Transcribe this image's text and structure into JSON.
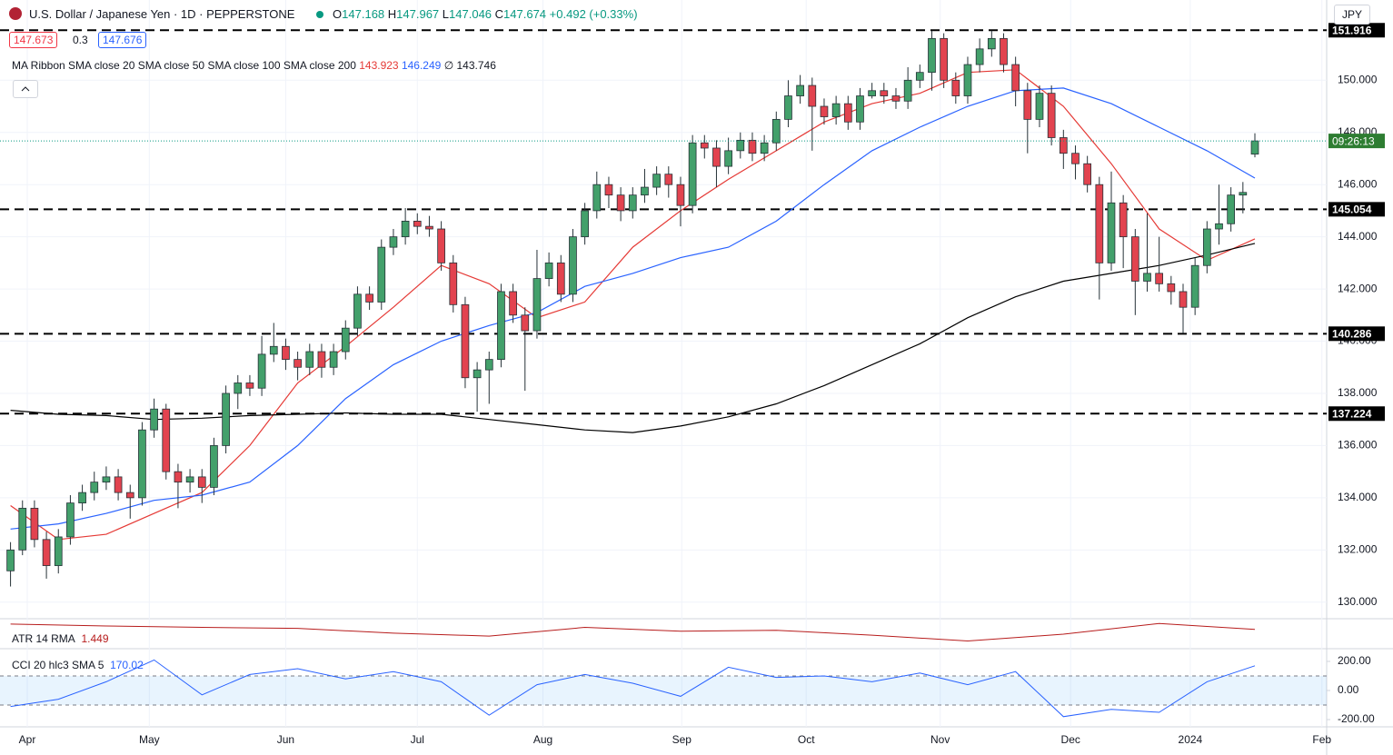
{
  "chart_data": {
    "type": "candlestick",
    "title": "U.S. Dollar / Japanese Yen · 1D · PEPPERSTONE",
    "ohlc_prefixes": [
      "O",
      "H",
      "L",
      "C"
    ],
    "change": "+0.492 (+0.33%)",
    "bid": 147.673,
    "spread": 0.3,
    "ask": 147.676,
    "ma_label": "MA Ribbon SMA close 20 SMA close 50 SMA close 100 SMA close 200",
    "ma_missing": "∅",
    "currency": "JPY",
    "countdown": "09:26:13",
    "up_color": "#43a06b",
    "down_color": "#e2434f",
    "outline_color": "#263238",
    "open": [
      131.2,
      132.0,
      133.6,
      132.4,
      131.4,
      132.5,
      133.8,
      134.2,
      134.6,
      134.8,
      134.2,
      134.0,
      136.6,
      137.4,
      135.0,
      134.6,
      134.8,
      134.4,
      136.0,
      138.0,
      138.4,
      138.2,
      139.5,
      139.8,
      139.3,
      139.0,
      139.6,
      139.0,
      139.6,
      140.5,
      141.8,
      141.5,
      143.6,
      144.0,
      144.6,
      144.4,
      144.3,
      143.0,
      141.4,
      138.6,
      138.9,
      139.3,
      141.9,
      141.0,
      140.4,
      142.4,
      143.0,
      141.8,
      144.0,
      145.0,
      146.0,
      145.6,
      145.0,
      145.6,
      145.9,
      146.4,
      146.0,
      145.2,
      147.6,
      147.4,
      146.7,
      147.3,
      147.7,
      147.2,
      147.6,
      148.5,
      149.4,
      149.8,
      149.0,
      148.6,
      149.1,
      148.4,
      149.4,
      149.6,
      149.4,
      149.2,
      150.0,
      150.3,
      151.6,
      150.0,
      149.4,
      150.6,
      151.2,
      151.6,
      150.6,
      149.6,
      148.5,
      149.5,
      147.8,
      147.2,
      146.8,
      146.0,
      143.0,
      145.3,
      144.0,
      142.3,
      142.6,
      142.2,
      141.9,
      141.3,
      142.9,
      144.3,
      144.5,
      145.6,
      147.168
    ],
    "high": [
      132.3,
      133.9,
      133.9,
      132.7,
      132.8,
      134.1,
      134.5,
      135.0,
      135.2,
      135.1,
      134.5,
      136.9,
      137.8,
      137.6,
      135.3,
      135.1,
      135.1,
      136.3,
      138.3,
      138.7,
      138.7,
      140.2,
      140.7,
      140.1,
      139.6,
      139.9,
      139.9,
      139.9,
      140.8,
      142.1,
      142.1,
      143.9,
      144.3,
      145.1,
      144.9,
      144.8,
      144.6,
      143.3,
      141.7,
      139.2,
      139.6,
      142.2,
      142.2,
      141.3,
      143.5,
      143.4,
      143.3,
      144.3,
      145.3,
      146.5,
      146.3,
      145.9,
      145.9,
      146.6,
      146.7,
      146.7,
      146.3,
      147.9,
      147.9,
      147.7,
      147.8,
      148.0,
      148.0,
      147.9,
      148.8,
      150.0,
      150.2,
      150.1,
      149.3,
      149.4,
      149.4,
      149.7,
      149.9,
      149.9,
      149.7,
      150.5,
      150.6,
      151.9,
      151.8,
      150.3,
      150.9,
      151.6,
      151.9,
      151.8,
      150.9,
      149.9,
      149.8,
      149.8,
      148.1,
      147.5,
      147.1,
      146.3,
      146.5,
      145.6,
      144.3,
      144.9,
      144.0,
      142.5,
      142.2,
      143.2,
      144.6,
      146.0,
      145.9,
      146.1,
      147.967
    ],
    "low": [
      130.6,
      131.8,
      132.1,
      130.9,
      131.1,
      132.2,
      133.5,
      133.9,
      134.3,
      133.9,
      133.2,
      133.7,
      136.3,
      134.7,
      133.6,
      134.2,
      133.8,
      134.1,
      135.7,
      137.4,
      137.9,
      137.9,
      139.2,
      138.9,
      138.5,
      138.7,
      138.6,
      138.7,
      139.3,
      140.2,
      141.2,
      141.2,
      143.3,
      143.7,
      144.1,
      144.0,
      142.7,
      141.1,
      138.2,
      137.3,
      137.6,
      139.0,
      140.7,
      138.1,
      140.1,
      142.1,
      141.5,
      141.5,
      143.7,
      144.7,
      145.1,
      144.6,
      144.7,
      145.3,
      145.6,
      145.5,
      144.4,
      144.9,
      147.0,
      145.9,
      146.4,
      147.0,
      146.9,
      146.9,
      147.3,
      148.2,
      149.1,
      147.3,
      148.3,
      148.3,
      148.1,
      148.1,
      149.3,
      149.1,
      148.9,
      148.9,
      149.7,
      149.6,
      149.7,
      149.1,
      149.1,
      150.3,
      150.9,
      150.3,
      149.0,
      147.2,
      148.2,
      147.5,
      146.6,
      146.2,
      145.7,
      141.6,
      142.7,
      142.8,
      141.0,
      141.9,
      141.9,
      141.4,
      140.3,
      141.0,
      142.6,
      143.7,
      144.2,
      144.9,
      147.046
    ],
    "close": [
      132.0,
      133.6,
      132.4,
      131.4,
      132.5,
      133.8,
      134.2,
      134.6,
      134.8,
      134.2,
      134.0,
      136.6,
      137.4,
      135.0,
      134.6,
      134.8,
      134.4,
      136.0,
      138.0,
      138.4,
      138.2,
      139.5,
      139.8,
      139.3,
      139.0,
      139.6,
      139.0,
      139.6,
      140.5,
      141.8,
      141.5,
      143.6,
      144.0,
      144.6,
      144.4,
      144.3,
      143.0,
      141.4,
      138.6,
      138.9,
      139.3,
      141.9,
      141.0,
      140.4,
      142.4,
      143.0,
      141.8,
      144.0,
      145.0,
      146.0,
      145.6,
      145.0,
      145.6,
      145.9,
      146.4,
      146.0,
      145.2,
      147.6,
      147.4,
      146.7,
      147.3,
      147.7,
      147.2,
      147.6,
      148.5,
      149.4,
      149.8,
      149.0,
      148.6,
      149.1,
      148.4,
      149.4,
      149.6,
      149.4,
      149.2,
      150.0,
      150.3,
      151.6,
      150.0,
      149.4,
      150.6,
      151.2,
      151.6,
      150.6,
      149.6,
      148.5,
      149.5,
      147.8,
      147.2,
      146.8,
      146.0,
      143.0,
      145.3,
      144.0,
      142.3,
      142.6,
      142.2,
      141.9,
      141.3,
      142.9,
      144.3,
      144.5,
      145.6,
      145.7,
      147.674
    ],
    "xlim": [
      -0.5,
      110
    ],
    "xticks": [
      {
        "value": 1.4,
        "label": "Apr"
      },
      {
        "value": 11.6,
        "label": "May"
      },
      {
        "value": 23,
        "label": "Jun"
      },
      {
        "value": 34,
        "label": "Jul"
      },
      {
        "value": 44.5,
        "label": "Aug"
      },
      {
        "value": 56.1,
        "label": "Sep"
      },
      {
        "value": 66.5,
        "label": "Oct"
      },
      {
        "value": 77.7,
        "label": "Nov"
      },
      {
        "value": 88.6,
        "label": "Dec"
      },
      {
        "value": 98.6,
        "label": "2024"
      },
      {
        "value": 109.6,
        "label": "Feb"
      }
    ],
    "ylim": [
      129.4,
      152.9
    ],
    "yticks": [
      {
        "value": 130,
        "label": "130.000"
      },
      {
        "value": 132,
        "label": "132.000"
      },
      {
        "value": 134,
        "label": "134.000"
      },
      {
        "value": 136,
        "label": "136.000"
      },
      {
        "value": 138,
        "label": "138.000"
      },
      {
        "value": 140,
        "label": "140.000"
      },
      {
        "value": 142,
        "label": "142.000"
      },
      {
        "value": 144,
        "label": "144.000"
      },
      {
        "value": 146,
        "label": "146.000"
      },
      {
        "value": 148,
        "label": "148.000"
      },
      {
        "value": 150,
        "label": "150.000"
      }
    ],
    "grid": true,
    "levels": [
      151.916,
      145.054,
      140.286,
      137.224
    ],
    "ma": [
      {
        "color": "#e53935",
        "x": [
          0,
          4,
          8,
          12,
          16,
          20,
          24,
          28,
          32,
          36,
          40,
          44,
          48,
          52,
          56,
          60,
          64,
          68,
          72,
          76,
          80,
          84,
          88,
          92,
          96,
          100,
          104
        ],
        "values": [
          133.7,
          132.4,
          132.6,
          133.4,
          134.2,
          136.0,
          138.4,
          139.8,
          141.3,
          142.9,
          142.2,
          140.9,
          141.5,
          143.6,
          145.0,
          146.2,
          147.3,
          148.4,
          149.1,
          149.5,
          150.3,
          150.4,
          149.0,
          146.8,
          144.3,
          143.1,
          143.923
        ]
      },
      {
        "color": "#2962ff",
        "x": [
          0,
          4,
          8,
          12,
          16,
          20,
          24,
          28,
          32,
          36,
          40,
          44,
          48,
          52,
          56,
          60,
          64,
          68,
          72,
          76,
          80,
          84,
          88,
          92,
          96,
          100,
          104
        ],
        "values": [
          132.8,
          133.0,
          133.4,
          133.9,
          134.1,
          134.6,
          136.0,
          137.8,
          139.1,
          140.0,
          140.6,
          141.1,
          142.1,
          142.6,
          143.2,
          143.6,
          144.6,
          146.0,
          147.3,
          148.2,
          149.0,
          149.6,
          149.7,
          149.1,
          148.2,
          147.3,
          146.249
        ]
      },
      {
        "color": "#000000",
        "x": [
          0,
          4,
          8,
          12,
          16,
          20,
          24,
          28,
          32,
          36,
          40,
          44,
          48,
          52,
          56,
          60,
          64,
          68,
          72,
          76,
          80,
          84,
          88,
          92,
          96,
          100,
          104
        ],
        "values": [
          137.35,
          137.2,
          137.15,
          137.0,
          137.05,
          137.15,
          137.2,
          137.25,
          137.2,
          137.2,
          137.0,
          136.8,
          136.6,
          136.5,
          136.75,
          137.1,
          137.6,
          138.3,
          139.1,
          139.9,
          140.9,
          141.7,
          142.3,
          142.6,
          142.9,
          143.3,
          143.746
        ]
      }
    ],
    "atr": {
      "label": "ATR 14 RMA",
      "color": "#b71c1c",
      "ylim": [
        0.5,
        1.9
      ],
      "x": [
        0,
        8,
        16,
        24,
        32,
        40,
        48,
        56,
        64,
        72,
        80,
        88,
        96,
        104
      ],
      "values": [
        1.72,
        1.62,
        1.55,
        1.5,
        1.25,
        1.1,
        1.55,
        1.35,
        1.4,
        1.15,
        0.85,
        1.2,
        1.75,
        1.449
      ]
    },
    "cci": {
      "label": "CCI 20 hlc3 SMA 5",
      "color": "#2962ff",
      "ylim": [
        -250,
        281
      ],
      "yticks": [
        {
          "value": 200,
          "label": "200.00"
        },
        {
          "value": 0,
          "label": "0.00"
        },
        {
          "value": -200,
          "label": "-200.00"
        }
      ],
      "band": [
        100,
        -100
      ],
      "x": [
        0,
        4,
        8,
        12,
        16,
        20,
        24,
        28,
        32,
        36,
        40,
        44,
        48,
        52,
        56,
        60,
        64,
        68,
        72,
        76,
        80,
        84,
        88,
        92,
        96,
        100,
        104
      ],
      "values": [
        -110,
        -60,
        60,
        210,
        -30,
        110,
        150,
        80,
        130,
        60,
        -170,
        40,
        110,
        50,
        -40,
        160,
        90,
        100,
        60,
        120,
        40,
        130,
        -180,
        -130,
        -150,
        60,
        170.02
      ]
    }
  }
}
